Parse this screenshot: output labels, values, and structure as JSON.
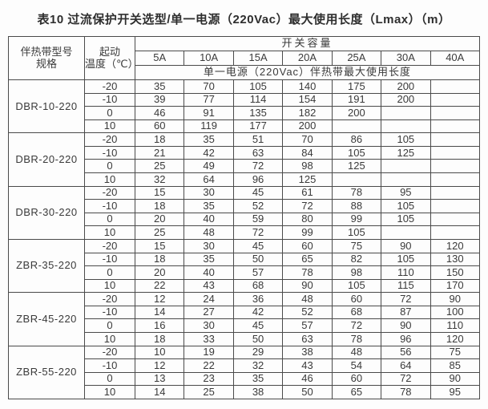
{
  "page": {
    "title": "表10 过流保护开关选型/单一电源（220Vac）最大使用长度（Lmax）（m）"
  },
  "colors": {
    "background": "#fdfdfd",
    "border": "#4a4a4a",
    "text": "#3a3a3a"
  },
  "table": {
    "col_model_line1": "伴热带型号",
    "col_model_line2": "规格",
    "col_temp_line1": "起动",
    "col_temp_line2": "温度（℃）",
    "capacity_header": "开关容量",
    "subheader": "单一电源（220Vac）伴热带最大使用长度",
    "capacities": [
      "5A",
      "10A",
      "15A",
      "20A",
      "25A",
      "30A",
      "40A"
    ],
    "groups": [
      {
        "model": "DBR-10-220",
        "rows": [
          {
            "temp": "-20",
            "values": [
              "35",
              "70",
              "105",
              "140",
              "175",
              "200",
              ""
            ]
          },
          {
            "temp": "-10",
            "values": [
              "39",
              "77",
              "114",
              "154",
              "191",
              "200",
              ""
            ]
          },
          {
            "temp": "0",
            "values": [
              "46",
              "91",
              "135",
              "182",
              "200",
              "",
              ""
            ]
          },
          {
            "temp": "10",
            "values": [
              "60",
              "119",
              "177",
              "200",
              "",
              "",
              ""
            ]
          }
        ]
      },
      {
        "model": "DBR-20-220",
        "rows": [
          {
            "temp": "-20",
            "values": [
              "18",
              "35",
              "51",
              "70",
              "86",
              "105",
              ""
            ]
          },
          {
            "temp": "-10",
            "values": [
              "21",
              "42",
              "63",
              "84",
              "105",
              "125",
              ""
            ]
          },
          {
            "temp": "0",
            "values": [
              "25",
              "49",
              "72",
              "98",
              "125",
              "",
              ""
            ]
          },
          {
            "temp": "10",
            "values": [
              "32",
              "64",
              "96",
              "125",
              "",
              "",
              ""
            ]
          }
        ]
      },
      {
        "model": "DBR-30-220",
        "rows": [
          {
            "temp": "-20",
            "values": [
              "15",
              "30",
              "45",
              "61",
              "78",
              "95",
              ""
            ]
          },
          {
            "temp": "-10",
            "values": [
              "18",
              "35",
              "52",
              "72",
              "88",
              "105",
              ""
            ]
          },
          {
            "temp": "0",
            "values": [
              "20",
              "40",
              "59",
              "80",
              "99",
              "105",
              ""
            ]
          },
          {
            "temp": "10",
            "values": [
              "25",
              "48",
              "72",
              "99",
              "105",
              "",
              ""
            ]
          }
        ]
      },
      {
        "model": "ZBR-35-220",
        "rows": [
          {
            "temp": "-20",
            "values": [
              "15",
              "30",
              "45",
              "60",
              "75",
              "90",
              "120"
            ]
          },
          {
            "temp": "-10",
            "values": [
              "18",
              "35",
              "50",
              "65",
              "82",
              "105",
              "130"
            ]
          },
          {
            "temp": "0",
            "values": [
              "20",
              "40",
              "57",
              "78",
              "98",
              "110",
              "150"
            ]
          },
          {
            "temp": "10",
            "values": [
              "22",
              "43",
              "68",
              "90",
              "105",
              "115",
              "170"
            ]
          }
        ]
      },
      {
        "model": "ZBR-45-220",
        "rows": [
          {
            "temp": "-20",
            "values": [
              "12",
              "24",
              "36",
              "48",
              "60",
              "72",
              "90"
            ]
          },
          {
            "temp": "-10",
            "values": [
              "14",
              "27",
              "42",
              "52",
              "68",
              "87",
              "100"
            ]
          },
          {
            "temp": "0",
            "values": [
              "16",
              "30",
              "45",
              "57",
              "72",
              "90",
              "110"
            ]
          },
          {
            "temp": "10",
            "values": [
              "18",
              "33",
              "50",
              "63",
              "78",
              "96",
              "120"
            ]
          }
        ]
      },
      {
        "model": "ZBR-55-220",
        "rows": [
          {
            "temp": "-20",
            "values": [
              "10",
              "19",
              "29",
              "38",
              "48",
              "56",
              "75"
            ]
          },
          {
            "temp": "-10",
            "values": [
              "12",
              "22",
              "32",
              "43",
              "54",
              "64",
              "85"
            ]
          },
          {
            "temp": "0",
            "values": [
              "13",
              "23",
              "35",
              "46",
              "60",
              "72",
              "90"
            ]
          },
          {
            "temp": "10",
            "values": [
              "14",
              "25",
              "38",
              "50",
              "65",
              "78",
              "95"
            ]
          }
        ]
      }
    ]
  }
}
